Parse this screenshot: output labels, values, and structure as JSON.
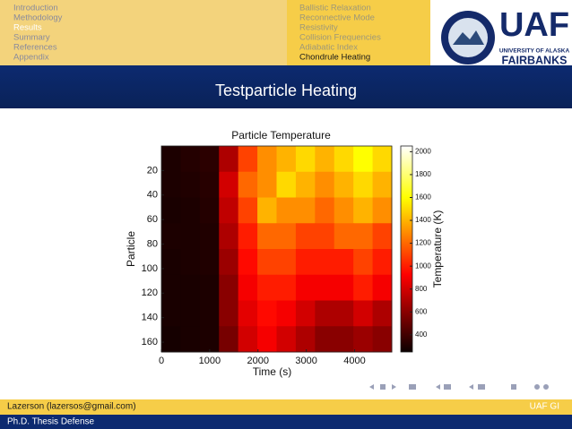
{
  "nav": {
    "sections": [
      "Introduction",
      "Methodology",
      "Results",
      "Summary",
      "References",
      "Appendix"
    ],
    "active_section": 2,
    "subsections": [
      "Ballistic Relaxation",
      "Reconnective Mode",
      "Resistivity",
      "Collision Frequencies",
      "Adiabatic Index",
      "Chondrule Heating"
    ],
    "active_subsection": 5
  },
  "logo": {
    "big": "UAF",
    "line1": "UNIVERSITY OF ALASKA",
    "line2": "FAIRBANKS"
  },
  "slide_title": "Testparticle Heating",
  "chart_data": {
    "type": "heatmap",
    "title": "Particle Temperature",
    "xlabel": "Time (s)",
    "ylabel": "Particle",
    "colorbar_label": "Temperature (K)",
    "colormap": "hot",
    "xlim": [
      0,
      4770
    ],
    "xticks": [
      0,
      1000,
      2000,
      3000,
      4000
    ],
    "ylim": [
      0,
      168
    ],
    "yticks": [
      20,
      40,
      60,
      80,
      100,
      120,
      140,
      160
    ],
    "y_reversed": true,
    "clim": [
      250,
      2050
    ],
    "cticks": [
      400,
      600,
      800,
      1000,
      1200,
      1400,
      1600,
      1800,
      2000
    ],
    "values": [
      [
        300,
        320,
        340,
        700,
        1100,
        1300,
        1400,
        1500,
        1400,
        1500,
        1600,
        1500
      ],
      [
        300,
        310,
        330,
        800,
        1200,
        1300,
        1500,
        1400,
        1300,
        1400,
        1500,
        1400
      ],
      [
        290,
        300,
        320,
        750,
        1100,
        1400,
        1300,
        1300,
        1200,
        1300,
        1400,
        1300
      ],
      [
        300,
        300,
        310,
        700,
        1000,
        1200,
        1200,
        1100,
        1100,
        1200,
        1200,
        1100
      ],
      [
        290,
        300,
        310,
        650,
        950,
        1100,
        1100,
        1000,
        1000,
        1000,
        1100,
        1000
      ],
      [
        290,
        290,
        300,
        600,
        900,
        1000,
        1000,
        900,
        900,
        900,
        1000,
        900
      ],
      [
        290,
        290,
        300,
        600,
        850,
        950,
        900,
        800,
        700,
        700,
        800,
        700
      ],
      [
        280,
        290,
        300,
        550,
        800,
        900,
        800,
        700,
        600,
        600,
        650,
        600
      ]
    ]
  },
  "footer": {
    "author": "Lazerson (lazersos@gmail.com)",
    "institute": "UAF GI",
    "event": "Ph.D. Thesis Defense"
  }
}
